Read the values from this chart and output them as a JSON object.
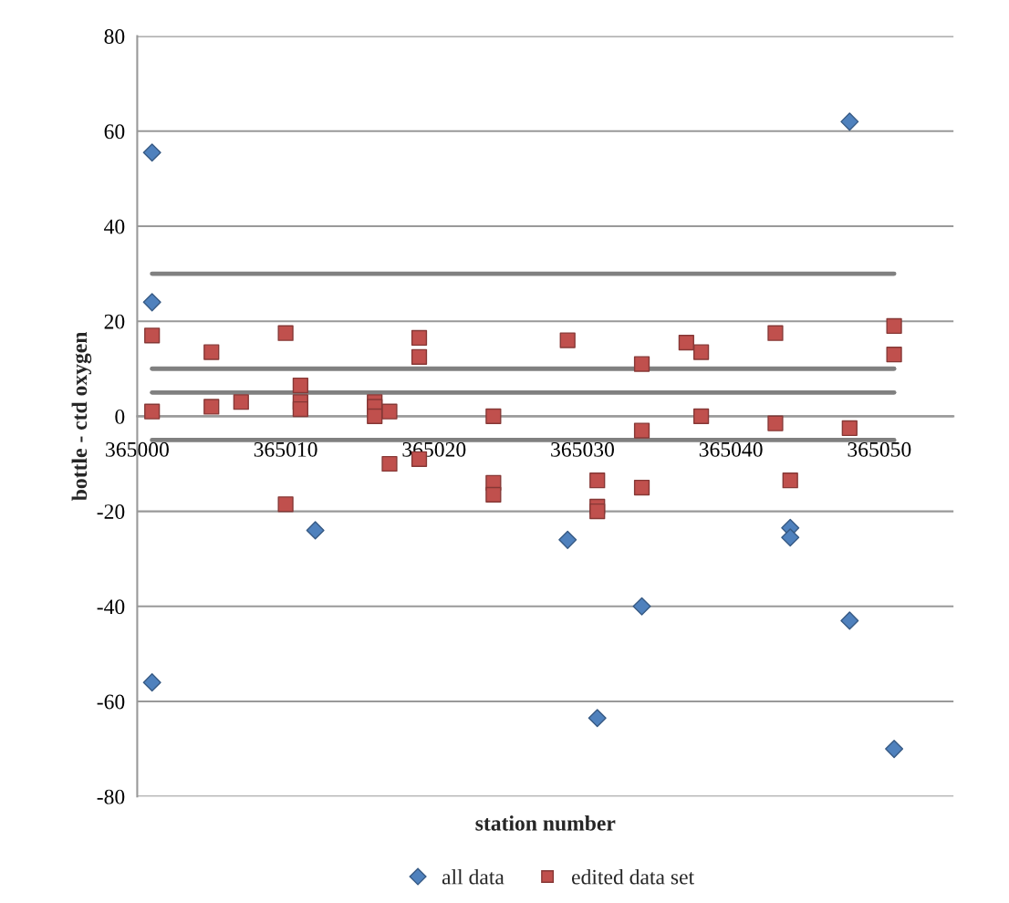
{
  "chart_data": {
    "type": "scatter",
    "xlabel": "station number",
    "ylabel": "bottle - ctd oxygen",
    "xlim": [
      365000,
      365055
    ],
    "xticks": [
      365000,
      365010,
      365020,
      365030,
      365040,
      365050
    ],
    "ylim": [
      -80,
      80
    ],
    "yticks": [
      -80,
      -60,
      -40,
      -20,
      0,
      20,
      40,
      60,
      80
    ],
    "grid": "y",
    "legend": "bottom",
    "series": [
      {
        "name": "all data",
        "marker": "diamond",
        "color": "#4f81bd",
        "x": [
          365001,
          365001,
          365001,
          365012,
          365029,
          365031,
          365034,
          365044,
          365044,
          365048,
          365048,
          365051
        ],
        "values": [
          55.5,
          24,
          -56,
          -24,
          -26,
          -63.5,
          -40,
          -23.5,
          -25.5,
          62,
          -43,
          -70
        ]
      },
      {
        "name": "edited data set",
        "marker": "square",
        "color": "#c0504d",
        "x": [
          365001,
          365001,
          365005,
          365005,
          365007,
          365010,
          365010,
          365011,
          365011,
          365011,
          365016,
          365016,
          365016,
          365017,
          365017,
          365019,
          365019,
          365019,
          365024,
          365024,
          365024,
          365029,
          365031,
          365031,
          365031,
          365034,
          365034,
          365034,
          365037,
          365038,
          365038,
          365043,
          365043,
          365044,
          365048,
          365051,
          365051
        ],
        "values": [
          17,
          1,
          13.5,
          2,
          3,
          17.5,
          -18.5,
          6.5,
          3,
          1.5,
          3,
          2,
          0,
          1,
          -10,
          16.5,
          12.5,
          -9,
          0,
          -14,
          -16.5,
          16,
          -13.5,
          -19,
          -20,
          11,
          -3,
          -15,
          15.5,
          13.5,
          0,
          17.5,
          -1.5,
          -13.5,
          -2.5,
          19,
          13
        ]
      },
      {
        "type": "line",
        "marker": "none",
        "color": "#808080",
        "x": [
          365001,
          365051
        ],
        "values": [
          30,
          30
        ]
      },
      {
        "type": "line",
        "marker": "none",
        "color": "#808080",
        "x": [
          365001,
          365051
        ],
        "values": [
          10,
          10
        ]
      },
      {
        "type": "line",
        "marker": "none",
        "color": "#808080",
        "x": [
          365001,
          365051
        ],
        "values": [
          5,
          5
        ]
      },
      {
        "type": "line",
        "marker": "none",
        "color": "#808080",
        "x": [
          365001,
          365051
        ],
        "values": [
          -5,
          -5
        ]
      }
    ]
  }
}
